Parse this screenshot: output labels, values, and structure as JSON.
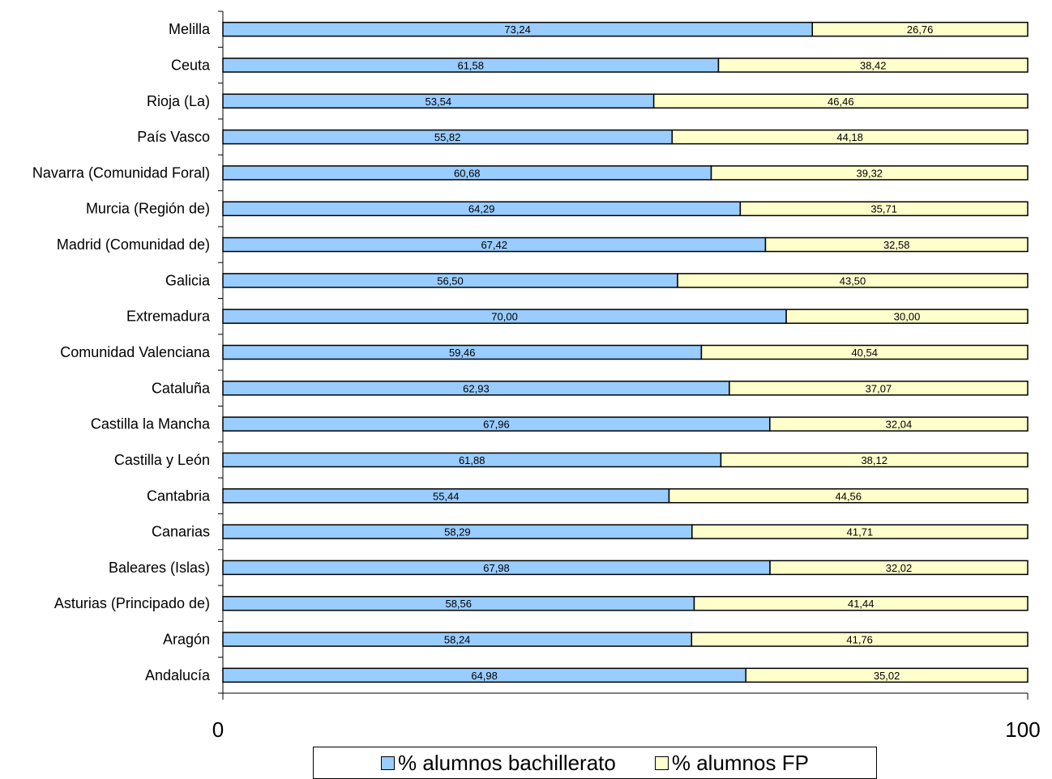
{
  "chart_data": {
    "type": "bar",
    "orientation": "horizontal",
    "stacked": true,
    "categories": [
      "Andalucía",
      "Aragón",
      "Asturias (Principado de)",
      "Baleares (Islas)",
      "Canarias",
      "Cantabria",
      "Castilla y León",
      "Castilla la Mancha",
      "Cataluña",
      "Comunidad Valenciana",
      "Extremadura",
      "Galicia",
      "Madrid (Comunidad de)",
      "Murcia (Región de)",
      "Navarra (Comunidad Foral)",
      "País Vasco",
      "Rioja (La)",
      "Ceuta",
      "Melilla"
    ],
    "series": [
      {
        "name": "% alumnos bachillerato",
        "color": "#99CCFF",
        "values": [
          64.98,
          58.24,
          58.56,
          67.98,
          58.29,
          55.44,
          61.88,
          67.96,
          62.93,
          59.46,
          70.0,
          56.5,
          67.42,
          64.29,
          60.68,
          55.82,
          53.54,
          61.58,
          73.24
        ],
        "labels": [
          "64,98",
          "58,24",
          "58,56",
          "67,98",
          "58,29",
          "55,44",
          "61,88",
          "67,96",
          "62,93",
          "59,46",
          "70,00",
          "56,50",
          "67,42",
          "64,29",
          "60,68",
          "55,82",
          "53,54",
          "61,58",
          "73,24"
        ]
      },
      {
        "name": "% alumnos FP",
        "color": "#FFFFCC",
        "values": [
          35.02,
          41.76,
          41.44,
          32.02,
          41.71,
          44.56,
          38.12,
          32.04,
          37.07,
          40.54,
          30.0,
          43.5,
          32.58,
          35.71,
          39.32,
          44.18,
          46.46,
          38.42,
          26.76
        ],
        "labels": [
          "35,02",
          "41,76",
          "41,44",
          "32,02",
          "41,71",
          "44,56",
          "38,12",
          "32,04",
          "37,07",
          "40,54",
          "30,00",
          "43,50",
          "32,58",
          "35,71",
          "39,32",
          "44,18",
          "46,46",
          "38,42",
          "26,76"
        ]
      }
    ],
    "xlim": [
      0,
      100
    ],
    "x_tick_labels": [
      "0",
      "100"
    ],
    "grid": false,
    "legend_position": "bottom"
  }
}
